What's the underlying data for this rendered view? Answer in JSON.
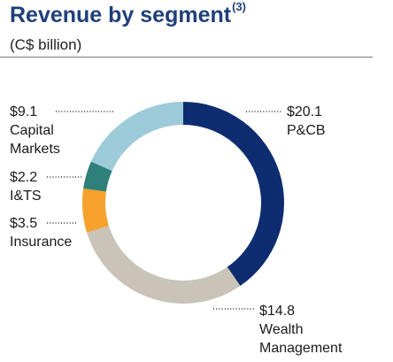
{
  "header": {
    "title": "Revenue by segment",
    "title_footnote": "(3)",
    "subtitle": "(C$ billion)"
  },
  "chart_data": {
    "type": "pie",
    "style": "donut",
    "title": "Revenue by segment",
    "subtitle": "(C$ billion)",
    "start": "12 o'clock, clockwise",
    "slices": [
      {
        "label": "P&CB",
        "value": 20.1,
        "value_label": "$20.1",
        "color": "#0e2d71"
      },
      {
        "label": "Wealth Management",
        "value": 14.8,
        "value_label": "$14.8",
        "color": "#c9c3b8"
      },
      {
        "label": "Insurance",
        "value": 3.5,
        "value_label": "$3.5",
        "color": "#f6a12b"
      },
      {
        "label": "I&TS",
        "value": 2.2,
        "value_label": "$2.2",
        "color": "#2f7f7b"
      },
      {
        "label": "Capital Markets",
        "value": 9.1,
        "value_label": "$9.1",
        "color": "#9dcbd9"
      }
    ]
  },
  "labels": {
    "pcb": {
      "value": "$20.1",
      "lines": [
        "P&CB"
      ]
    },
    "wealth": {
      "value": "$14.8",
      "lines": [
        "Wealth",
        "Management"
      ]
    },
    "insurance": {
      "value": "$3.5",
      "lines": [
        "Insurance"
      ]
    },
    "its": {
      "value": "$2.2",
      "lines": [
        "I&TS"
      ]
    },
    "capital": {
      "value": "$9.1",
      "lines": [
        "Capital",
        "Markets"
      ]
    }
  },
  "leader_color": "#333333"
}
